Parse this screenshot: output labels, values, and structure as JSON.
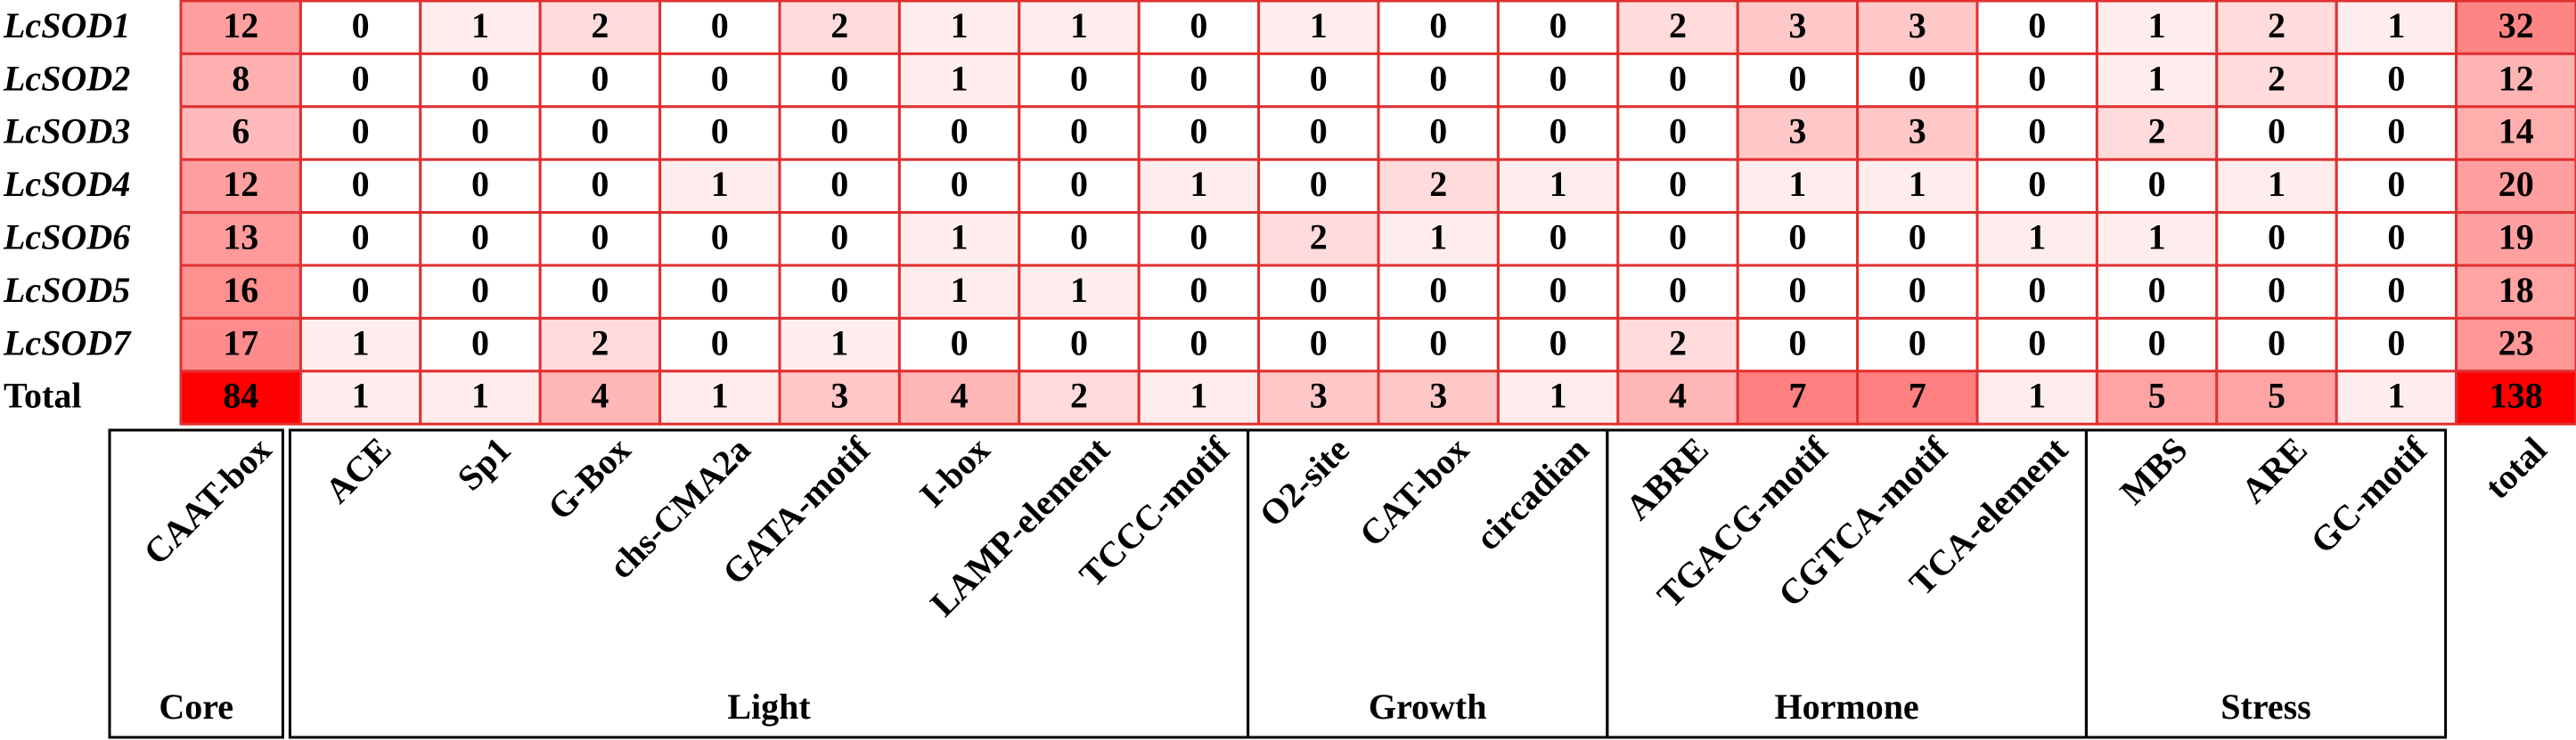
{
  "table": {
    "header_groups": [
      {
        "label": "Core",
        "columns": [
          "CAAT-box"
        ]
      },
      {
        "label": "Light",
        "columns": [
          "ACE",
          "Sp1",
          "G-Box",
          "chs-CMA2a",
          "GATA-motif",
          "I-box",
          "LAMP-element",
          "TCCC-motif"
        ]
      },
      {
        "label": "Growth",
        "columns": [
          "O2-site",
          "CAT-box",
          "circadian"
        ]
      },
      {
        "label": "Hormone",
        "columns": [
          "ABRE",
          "TGACG-motif",
          "CGTCA-motif",
          "TCA-element"
        ]
      },
      {
        "label": "Stress",
        "columns": [
          "MBS",
          "ARE",
          "GC-motif"
        ]
      }
    ],
    "total_column": "total",
    "rows": [
      {
        "label": "LcSOD1",
        "color": "#1f6fc0",
        "values": [
          12,
          0,
          1,
          2,
          0,
          2,
          1,
          1,
          0,
          1,
          0,
          0,
          2,
          3,
          3,
          0,
          1,
          2,
          1,
          32
        ]
      },
      {
        "label": "LcSOD2",
        "color": "#e02020",
        "values": [
          8,
          0,
          0,
          0,
          0,
          0,
          1,
          0,
          0,
          0,
          0,
          0,
          0,
          0,
          0,
          0,
          1,
          2,
          0,
          12
        ]
      },
      {
        "label": "LcSOD3",
        "color": "#e02020",
        "values": [
          6,
          0,
          0,
          0,
          0,
          0,
          0,
          0,
          0,
          0,
          0,
          0,
          0,
          3,
          3,
          0,
          2,
          0,
          0,
          14
        ]
      },
      {
        "label": "LcSOD4",
        "color": "#e02020",
        "values": [
          12,
          0,
          0,
          0,
          1,
          0,
          0,
          0,
          1,
          0,
          2,
          1,
          0,
          1,
          1,
          0,
          0,
          1,
          0,
          20
        ]
      },
      {
        "label": "LcSOD6",
        "color": "#e02020",
        "values": [
          13,
          0,
          0,
          0,
          0,
          0,
          1,
          0,
          0,
          2,
          1,
          0,
          0,
          0,
          0,
          1,
          1,
          0,
          0,
          19
        ]
      },
      {
        "label": "LcSOD5",
        "color": "#3a8a2a",
        "values": [
          16,
          0,
          0,
          0,
          0,
          0,
          1,
          1,
          0,
          0,
          0,
          0,
          0,
          0,
          0,
          0,
          0,
          0,
          0,
          18
        ]
      },
      {
        "label": "LcSOD7",
        "color": "#3a8a2a",
        "values": [
          17,
          1,
          0,
          2,
          0,
          1,
          0,
          0,
          0,
          0,
          0,
          0,
          2,
          0,
          0,
          0,
          0,
          0,
          0,
          23
        ]
      }
    ],
    "total_row": {
      "label": "Total",
      "color": "#000000",
      "values": [
        84,
        1,
        1,
        4,
        1,
        3,
        4,
        2,
        1,
        3,
        3,
        1,
        4,
        7,
        7,
        1,
        5,
        5,
        1,
        138
      ]
    }
  }
}
